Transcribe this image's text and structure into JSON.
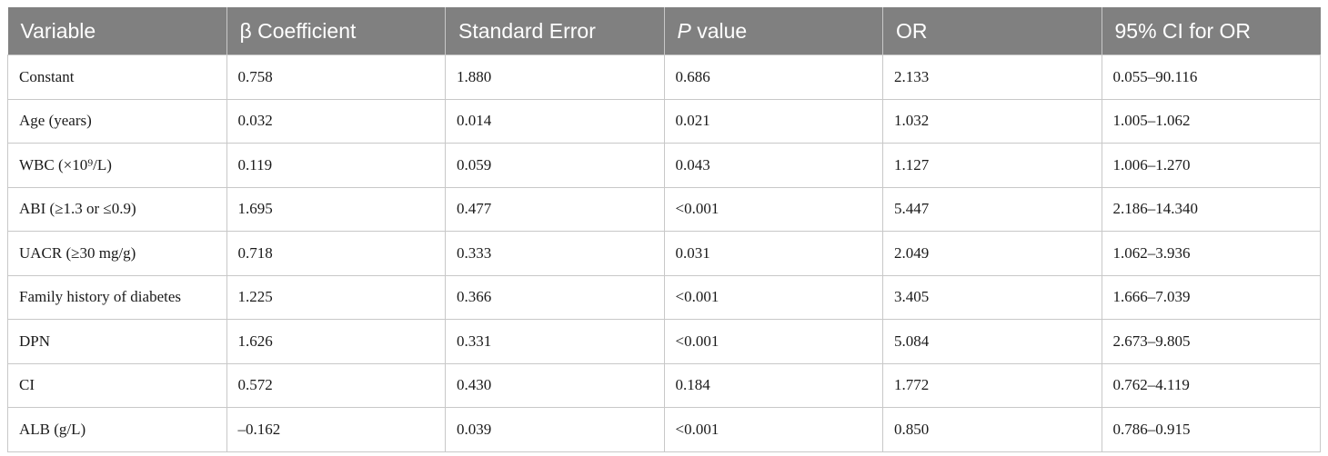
{
  "table": {
    "header": [
      "Variable",
      "β Coefficient",
      "Standard Error",
      "P value",
      "OR",
      "95% CI for OR"
    ],
    "rows": [
      [
        "Constant",
        "0.758",
        "1.880",
        "0.686",
        "2.133",
        "0.055–90.116"
      ],
      [
        "Age (years)",
        "0.032",
        "0.014",
        "0.021",
        "1.032",
        "1.005–1.062"
      ],
      [
        "WBC (×10⁹/L)",
        "0.119",
        "0.059",
        "0.043",
        "1.127",
        "1.006–1.270"
      ],
      [
        "ABI (≥1.3 or ≤0.9)",
        "1.695",
        "0.477",
        "<0.001",
        "5.447",
        "2.186–14.340"
      ],
      [
        "UACR (≥30 mg/g)",
        "0.718",
        "0.333",
        "0.031",
        "2.049",
        "1.062–3.936"
      ],
      [
        "Family history of diabetes",
        "1.225",
        "0.366",
        "<0.001",
        "3.405",
        "1.666–7.039"
      ],
      [
        "DPN",
        "1.626",
        "0.331",
        "<0.001",
        "5.084",
        "2.673–9.805"
      ],
      [
        "CI",
        "0.572",
        "0.430",
        "0.184",
        "1.772",
        "0.762–4.119"
      ],
      [
        "ALB (g/L)",
        "–0.162",
        "0.039",
        "<0.001",
        "0.850",
        "0.786–0.915"
      ]
    ]
  }
}
